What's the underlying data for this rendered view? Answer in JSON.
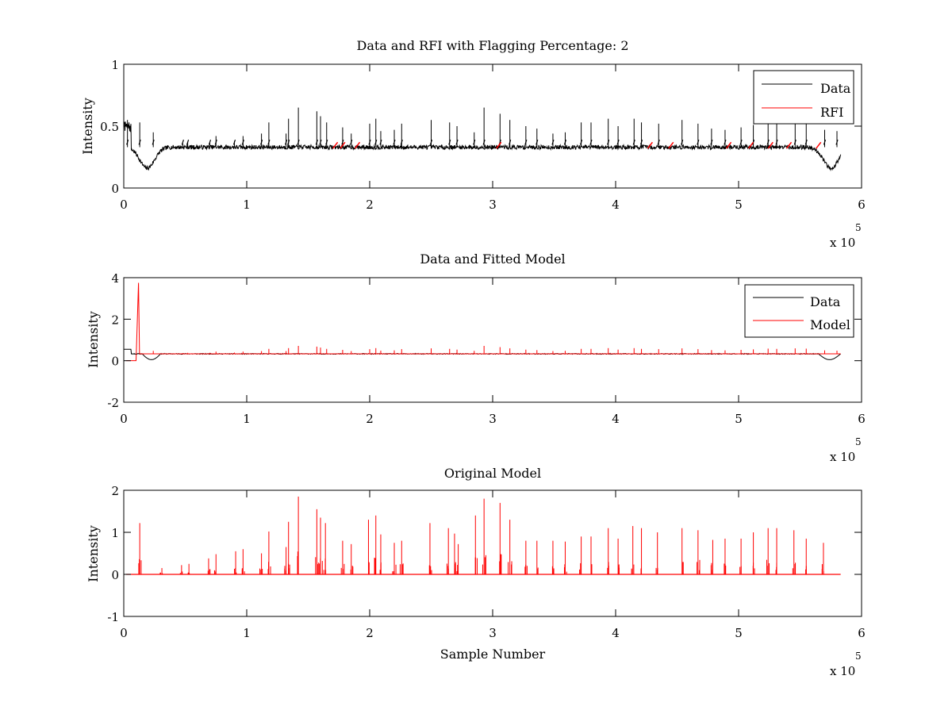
{
  "chart_data": [
    {
      "type": "line",
      "title": "Data and RFI with Flagging Percentage: 2",
      "xlabel": "",
      "ylabel": "Intensity",
      "xlim": [
        0,
        600000
      ],
      "ylim": [
        0,
        1
      ],
      "xticks": [
        0,
        1,
        2,
        3,
        4,
        5,
        6
      ],
      "yticks": [
        0,
        0.5,
        1
      ],
      "x_multiplier_label": "x 10",
      "x_multiplier_exponent": "5",
      "grid": false,
      "legend_position": "top-right",
      "baseline": 0.33,
      "series": [
        {
          "name": "Data",
          "color": "#000000",
          "peaks": [
            [
              3000,
              0.55
            ],
            [
              13000,
              0.53
            ],
            [
              24000,
              0.45
            ],
            [
              48000,
              0.36
            ],
            [
              52000,
              0.37
            ],
            [
              70000,
              0.37
            ],
            [
              75000,
              0.42
            ],
            [
              90000,
              0.38
            ],
            [
              97000,
              0.42
            ],
            [
              112000,
              0.44
            ],
            [
              118000,
              0.53
            ],
            [
              132000,
              0.44
            ],
            [
              134000,
              0.56
            ],
            [
              142000,
              0.65
            ],
            [
              157000,
              0.62
            ],
            [
              160000,
              0.58
            ],
            [
              165000,
              0.53
            ],
            [
              178000,
              0.49
            ],
            [
              185000,
              0.44
            ],
            [
              200000,
              0.52
            ],
            [
              205000,
              0.56
            ],
            [
              209000,
              0.46
            ],
            [
              220000,
              0.47
            ],
            [
              226000,
              0.52
            ],
            [
              250000,
              0.55
            ],
            [
              265000,
              0.53
            ],
            [
              271000,
              0.5
            ],
            [
              285000,
              0.45
            ],
            [
              293000,
              0.65
            ],
            [
              306000,
              0.6
            ],
            [
              314000,
              0.55
            ],
            [
              327000,
              0.5
            ],
            [
              336000,
              0.48
            ],
            [
              349000,
              0.44
            ],
            [
              359000,
              0.45
            ],
            [
              372000,
              0.53
            ],
            [
              380000,
              0.53
            ],
            [
              394000,
              0.56
            ],
            [
              402000,
              0.5
            ],
            [
              415000,
              0.56
            ],
            [
              421000,
              0.53
            ],
            [
              435000,
              0.52
            ],
            [
              454000,
              0.55
            ],
            [
              467000,
              0.52
            ],
            [
              478000,
              0.48
            ],
            [
              489000,
              0.47
            ],
            [
              502000,
              0.49
            ],
            [
              512000,
              0.51
            ],
            [
              524000,
              0.54
            ],
            [
              531000,
              0.53
            ],
            [
              546000,
              0.55
            ],
            [
              555000,
              0.54
            ],
            [
              570000,
              0.47
            ],
            [
              580000,
              0.46
            ]
          ],
          "dips": [
            [
              19000,
              0.16
            ],
            [
              575000,
              0.16
            ]
          ]
        },
        {
          "name": "RFI",
          "color": "#ff0000",
          "flagged_x": [
            172000,
            178000,
            190000,
            305000,
            428000,
            445000,
            492000,
            510000,
            526000,
            541000,
            565000
          ]
        }
      ]
    },
    {
      "type": "line",
      "title": "Data and Fitted Model",
      "xlabel": "",
      "ylabel": "Intensity",
      "xlim": [
        0,
        600000
      ],
      "ylim": [
        -2,
        4
      ],
      "xticks": [
        0,
        1,
        2,
        3,
        4,
        5,
        6
      ],
      "yticks": [
        -2,
        0,
        2,
        4
      ],
      "x_multiplier_label": "x 10",
      "x_multiplier_exponent": "5",
      "grid": false,
      "legend_position": "top-right",
      "series": [
        {
          "name": "Data",
          "color": "#000000",
          "baseline": 0.33
        },
        {
          "name": "Model",
          "color": "#ff0000",
          "baseline": 0.33,
          "spike": [
            12000,
            3.75
          ]
        }
      ]
    },
    {
      "type": "line",
      "title": "Original Model",
      "xlabel": "Sample Number",
      "ylabel": "Intensity",
      "xlim": [
        0,
        600000
      ],
      "ylim": [
        -1,
        2
      ],
      "xticks": [
        0,
        1,
        2,
        3,
        4,
        5,
        6
      ],
      "yticks": [
        -1,
        0,
        1,
        2
      ],
      "x_multiplier_label": "x 10",
      "x_multiplier_exponent": "5",
      "grid": false,
      "series": [
        {
          "name": "",
          "color": "#ff0000",
          "peaks": [
            [
              13000,
              1.22
            ],
            [
              31000,
              0.15
            ],
            [
              47000,
              0.22
            ],
            [
              53000,
              0.25
            ],
            [
              69000,
              0.38
            ],
            [
              75000,
              0.48
            ],
            [
              91000,
              0.55
            ],
            [
              97000,
              0.6
            ],
            [
              112000,
              0.5
            ],
            [
              118000,
              1.02
            ],
            [
              132000,
              0.65
            ],
            [
              134000,
              1.25
            ],
            [
              142000,
              1.85
            ],
            [
              157000,
              1.55
            ],
            [
              160000,
              1.35
            ],
            [
              164000,
              1.22
            ],
            [
              178000,
              0.8
            ],
            [
              185000,
              0.72
            ],
            [
              199000,
              1.3
            ],
            [
              205000,
              1.4
            ],
            [
              209000,
              0.95
            ],
            [
              220000,
              0.75
            ],
            [
              226000,
              0.8
            ],
            [
              249000,
              1.22
            ],
            [
              264000,
              1.1
            ],
            [
              269000,
              0.97
            ],
            [
              272000,
              0.72
            ],
            [
              286000,
              1.4
            ],
            [
              293000,
              1.8
            ],
            [
              306000,
              1.7
            ],
            [
              314000,
              1.3
            ],
            [
              327000,
              0.8
            ],
            [
              336000,
              0.8
            ],
            [
              349000,
              0.8
            ],
            [
              359000,
              0.78
            ],
            [
              372000,
              0.9
            ],
            [
              380000,
              0.9
            ],
            [
              394000,
              1.1
            ],
            [
              402000,
              0.85
            ],
            [
              414000,
              1.15
            ],
            [
              421000,
              1.1
            ],
            [
              434000,
              1.0
            ],
            [
              454000,
              1.1
            ],
            [
              467000,
              1.05
            ],
            [
              479000,
              0.82
            ],
            [
              489000,
              0.85
            ],
            [
              502000,
              0.85
            ],
            [
              512000,
              1.0
            ],
            [
              524000,
              1.1
            ],
            [
              531000,
              1.1
            ],
            [
              545000,
              1.05
            ],
            [
              555000,
              0.85
            ],
            [
              569000,
              0.75
            ]
          ]
        }
      ]
    }
  ]
}
